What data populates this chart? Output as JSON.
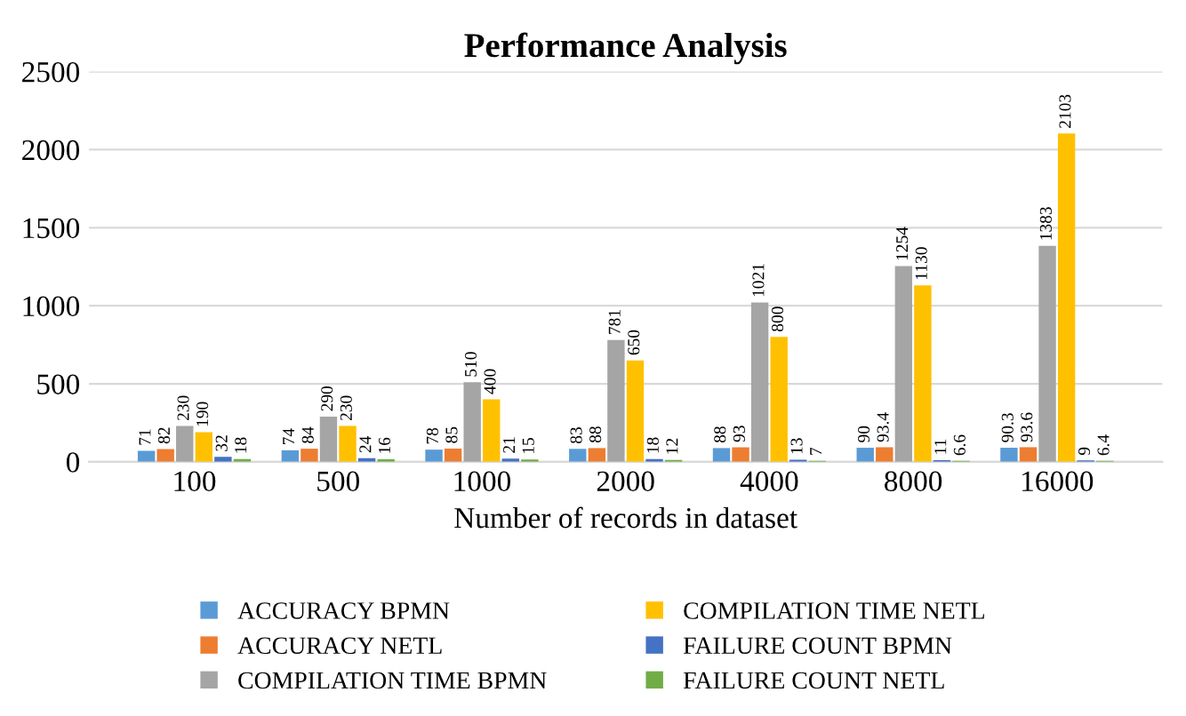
{
  "chart_data": {
    "type": "bar",
    "title": "Performance Analysis",
    "xlabel": "Number of records in dataset",
    "categories": [
      "100",
      "500",
      "1000",
      "2000",
      "4000",
      "8000",
      "16000"
    ],
    "series": [
      {
        "name": "ACCURACY BPMN",
        "color": "#5b9bd5",
        "values": [
          71,
          74,
          78,
          83,
          88,
          90,
          90.3
        ]
      },
      {
        "name": "ACCURACY NETL",
        "color": "#ed7d31",
        "values": [
          82,
          84,
          85,
          88,
          93,
          93.4,
          93.6
        ]
      },
      {
        "name": "COMPILATION TIME BPMN",
        "color": "#a5a5a5",
        "values": [
          230,
          290,
          510,
          781,
          1021,
          1254,
          1383
        ]
      },
      {
        "name": "COMPILATION TIME NETL",
        "color": "#ffc000",
        "values": [
          190,
          230,
          400,
          650,
          800,
          1130,
          2103
        ]
      },
      {
        "name": "FAILURE COUNT BPMN",
        "color": "#4472c4",
        "values": [
          32,
          24,
          21,
          18,
          13,
          11,
          9
        ]
      },
      {
        "name": "FAILURE COUNT NETL",
        "color": "#70ad47",
        "values": [
          18,
          16,
          15,
          12,
          7,
          6.6,
          6.4
        ]
      }
    ],
    "ylim": [
      0,
      2500
    ],
    "yticks": [
      0,
      500,
      1000,
      1500,
      2000,
      2500
    ],
    "grid": "y",
    "legend": "bottom",
    "data_labels": true
  }
}
